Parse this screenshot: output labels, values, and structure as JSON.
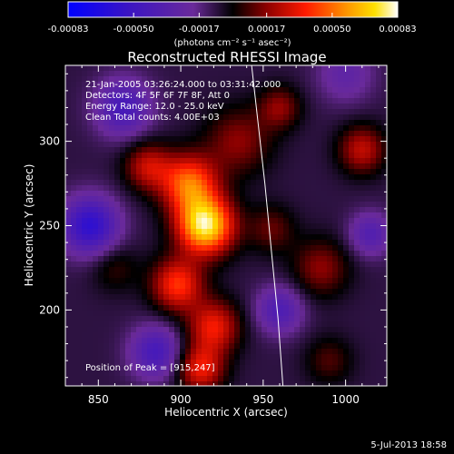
{
  "chart_data": {
    "type": "heatmap",
    "title": "Reconstructed RHESSI Image",
    "xlabel": "Heliocentric X (arcsec)",
    "ylabel": "Heliocentric Y (arcsec)",
    "xlim": [
      830,
      1025
    ],
    "ylim": [
      155,
      345
    ],
    "xticks": [
      850,
      900,
      950,
      1000
    ],
    "yticks": [
      200,
      250,
      300
    ],
    "colorbar": {
      "min": -0.00083,
      "max": 0.00083,
      "tick_values": [
        -0.00083,
        -0.0005,
        -0.00017,
        0.00017,
        0.0005,
        0.00083
      ],
      "tick_labels": [
        "-0.00083",
        "-0.00050",
        "-0.00017",
        "0.00017",
        "0.00050",
        "0.00083"
      ],
      "units_label": "(photons cm⁻² s⁻¹ asec⁻²)"
    },
    "annotations": [
      "21-Jan-2005 03:26:24.000 to 03:31:42.000",
      "Detectors: 4F 5F 6F 7F 8F, Att 0",
      "Energy Range: 12.0 - 25.0 keV",
      "Clean    Total counts: 4.00E+03"
    ],
    "peak_label": "Position of Peak = [915,247]",
    "peak": {
      "x": 915,
      "y": 247
    },
    "limb_curve": {
      "x": [
        943,
        947,
        951,
        955,
        959,
        962
      ],
      "y": [
        345,
        310,
        275,
        235,
        195,
        155
      ]
    },
    "blobs": [
      {
        "x": 915,
        "y": 250,
        "amplitude": 1.5,
        "sigma": 12
      },
      {
        "x": 905,
        "y": 275,
        "amplitude": 1.0,
        "sigma": 12
      },
      {
        "x": 898,
        "y": 215,
        "amplitude": 0.85,
        "sigma": 11
      },
      {
        "x": 920,
        "y": 190,
        "amplitude": 0.75,
        "sigma": 11
      },
      {
        "x": 912,
        "y": 165,
        "amplitude": 0.75,
        "sigma": 10
      },
      {
        "x": 880,
        "y": 285,
        "amplitude": 0.6,
        "sigma": 10
      },
      {
        "x": 935,
        "y": 300,
        "amplitude": 0.45,
        "sigma": 14
      },
      {
        "x": 960,
        "y": 320,
        "amplitude": 0.45,
        "sigma": 9
      },
      {
        "x": 1010,
        "y": 295,
        "amplitude": 0.6,
        "sigma": 10
      },
      {
        "x": 985,
        "y": 225,
        "amplitude": 0.45,
        "sigma": 12
      },
      {
        "x": 955,
        "y": 248,
        "amplitude": 0.35,
        "sigma": 10
      },
      {
        "x": 860,
        "y": 225,
        "amplitude": 0.25,
        "sigma": 10
      },
      {
        "x": 990,
        "y": 170,
        "amplitude": 0.3,
        "sigma": 10
      },
      {
        "x": 845,
        "y": 250,
        "amplitude": -0.9,
        "sigma": 12
      },
      {
        "x": 885,
        "y": 175,
        "amplitude": -0.65,
        "sigma": 11
      },
      {
        "x": 865,
        "y": 320,
        "amplitude": -0.65,
        "sigma": 12
      },
      {
        "x": 960,
        "y": 200,
        "amplitude": -0.55,
        "sigma": 10
      },
      {
        "x": 1015,
        "y": 245,
        "amplitude": -0.5,
        "sigma": 9
      },
      {
        "x": 1000,
        "y": 340,
        "amplitude": -0.35,
        "sigma": 12
      }
    ]
  },
  "footer_timestamp": "5-Jul-2013 18:58"
}
